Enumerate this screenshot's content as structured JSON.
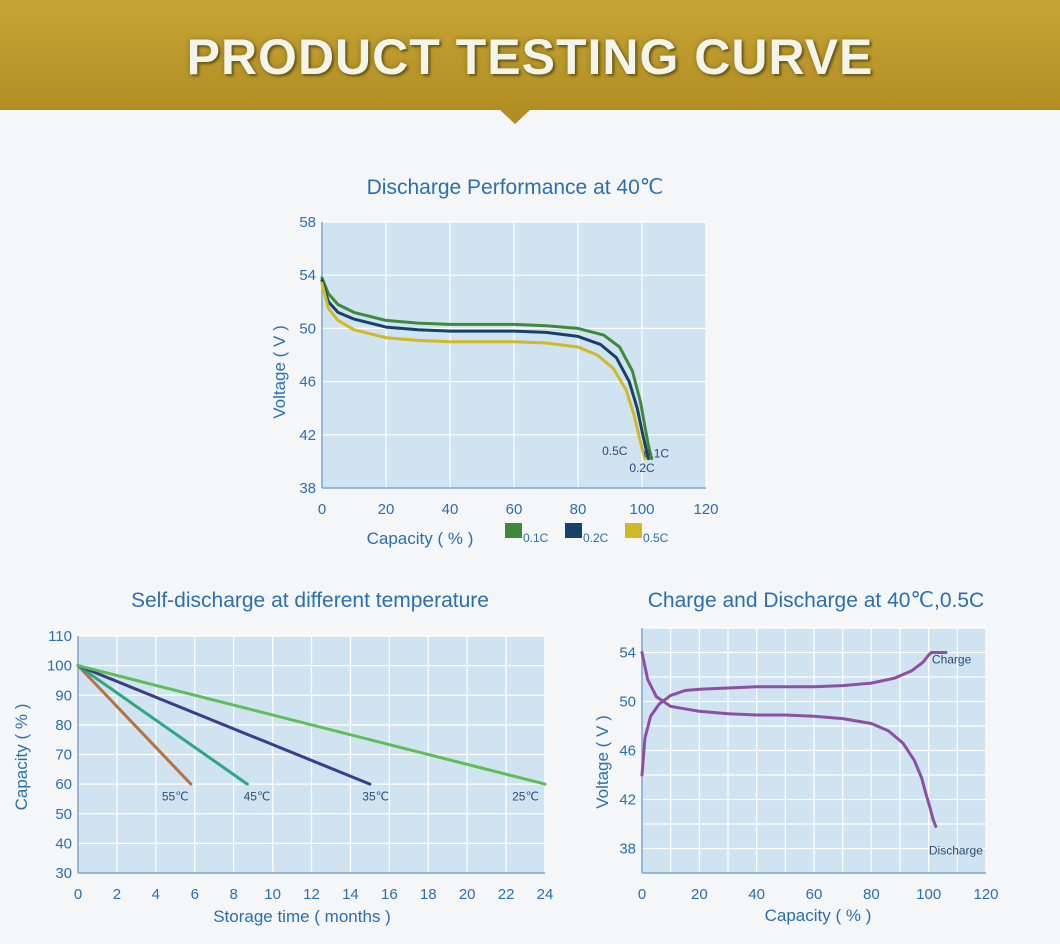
{
  "banner": {
    "title": "PRODUCT TESTING CURVE"
  },
  "colors": {
    "banner": "#b8952a",
    "plot_bg": "#cfe3f1",
    "grid": "#ffffff",
    "text": "#2a6fb0"
  },
  "chart_data": [
    {
      "id": "discharge",
      "type": "line",
      "title": "Discharge Performance at 40℃",
      "xlabel": "Capacity ( % )",
      "ylabel": "Voltage ( V )",
      "xlim": [
        0,
        120
      ],
      "ylim": [
        38,
        58
      ],
      "xticks": [
        0,
        20,
        40,
        60,
        80,
        100,
        120
      ],
      "yticks": [
        38,
        42,
        46,
        50,
        54,
        58
      ],
      "xgrid": [
        0,
        20,
        40,
        60,
        80,
        100,
        120
      ],
      "ygrid": [
        38,
        42,
        46,
        50,
        54,
        58
      ],
      "series": [
        {
          "name": "0.1C",
          "color": "#3e8a3a",
          "x": [
            0,
            2,
            5,
            10,
            20,
            30,
            40,
            50,
            60,
            70,
            80,
            88,
            93,
            97,
            99.5,
            101,
            102,
            103
          ],
          "y": [
            53.8,
            52.6,
            51.8,
            51.2,
            50.6,
            50.4,
            50.3,
            50.3,
            50.3,
            50.2,
            50.0,
            49.5,
            48.6,
            46.8,
            44.5,
            42.5,
            41.2,
            40.2
          ]
        },
        {
          "name": "0.2C",
          "color": "#17416b",
          "x": [
            0,
            2,
            5,
            10,
            20,
            30,
            40,
            50,
            60,
            70,
            80,
            87,
            92,
            96,
            98.5,
            100,
            101,
            102
          ],
          "y": [
            53.6,
            52.0,
            51.2,
            50.7,
            50.1,
            49.9,
            49.8,
            49.8,
            49.8,
            49.7,
            49.4,
            48.8,
            47.8,
            46.0,
            44.0,
            42.3,
            41.2,
            40.2
          ]
        },
        {
          "name": "0.5C",
          "color": "#d1b827",
          "x": [
            0,
            2,
            5,
            10,
            20,
            30,
            40,
            50,
            60,
            70,
            80,
            86,
            91,
            95,
            97.5,
            99,
            100,
            101
          ],
          "y": [
            53.4,
            51.5,
            50.6,
            49.9,
            49.3,
            49.1,
            49.0,
            49.0,
            49.0,
            48.9,
            48.6,
            48.0,
            47.0,
            45.4,
            43.5,
            42.0,
            41.0,
            40.2
          ]
        }
      ],
      "annotations": [
        {
          "text": "0.5C",
          "x": 91.5,
          "y": 40.5
        },
        {
          "text": "0.1C",
          "x": 104.5,
          "y": 40.3
        },
        {
          "text": "0.2C",
          "x": 100,
          "y": 39.2
        }
      ],
      "legend": [
        {
          "label": "0.1C",
          "color": "#3e8a3a"
        },
        {
          "label": "0.2C",
          "color": "#17416b"
        },
        {
          "label": "0.5C",
          "color": "#d1b827"
        }
      ]
    },
    {
      "id": "selfdischarge",
      "type": "line",
      "title": "Self-discharge at different temperature",
      "xlabel": "Storage time ( months )",
      "ylabel": "Capacity ( % )",
      "xlim": [
        0,
        24
      ],
      "ylim": [
        30,
        110
      ],
      "xticks": [
        0,
        2,
        4,
        6,
        8,
        10,
        12,
        14,
        16,
        18,
        20,
        22,
        24
      ],
      "yticks": [
        30,
        40,
        50,
        60,
        70,
        80,
        90,
        100,
        110
      ],
      "xgrid": [
        0,
        2,
        4,
        6,
        8,
        10,
        12,
        14,
        16,
        18,
        20,
        22,
        24
      ],
      "ygrid": [
        30,
        40,
        50,
        60,
        70,
        80,
        90,
        100,
        110
      ],
      "series": [
        {
          "name": "55℃",
          "color": "#b8723d",
          "x": [
            0,
            5.8
          ],
          "y": [
            100,
            60
          ]
        },
        {
          "name": "45℃",
          "color": "#2ea583",
          "x": [
            0,
            8.7
          ],
          "y": [
            100,
            60
          ]
        },
        {
          "name": "35℃",
          "color": "#3b3c8a",
          "x": [
            0,
            15
          ],
          "y": [
            100,
            60
          ]
        },
        {
          "name": "25℃",
          "color": "#5fbd55",
          "x": [
            0,
            24
          ],
          "y": [
            100,
            60
          ]
        }
      ],
      "annotations": [
        {
          "text": "55℃",
          "x": 5.0,
          "y": 54.5
        },
        {
          "text": "45℃",
          "x": 9.2,
          "y": 54.5
        },
        {
          "text": "35℃",
          "x": 15.3,
          "y": 54.5
        },
        {
          "text": "25℃",
          "x": 23.0,
          "y": 54.5
        }
      ]
    },
    {
      "id": "chargedischarge",
      "type": "line",
      "title": "Charge and Discharge at 40℃,0.5C",
      "xlabel": "Capacity ( % )",
      "ylabel": "Voltage ( V )",
      "xlim": [
        0,
        120
      ],
      "ylim": [
        36,
        56
      ],
      "xticks": [
        0,
        20,
        40,
        60,
        80,
        100,
        120
      ],
      "yticks": [
        38,
        42,
        46,
        50,
        54
      ],
      "xgrid": [
        0,
        10,
        20,
        30,
        40,
        50,
        60,
        70,
        80,
        90,
        100,
        110,
        120
      ],
      "ygrid": [
        36,
        38,
        40,
        42,
        44,
        46,
        48,
        50,
        52,
        54,
        56
      ],
      "series": [
        {
          "name": "Charge",
          "color": "#8e4fa2",
          "x": [
            0,
            1,
            3,
            6,
            10,
            15,
            20,
            30,
            40,
            50,
            60,
            70,
            80,
            88,
            94,
            98,
            100,
            101,
            104,
            106
          ],
          "y": [
            44.0,
            47.0,
            48.8,
            49.8,
            50.5,
            50.9,
            51.0,
            51.1,
            51.2,
            51.2,
            51.2,
            51.3,
            51.5,
            51.9,
            52.5,
            53.2,
            53.8,
            54.0,
            54.0,
            54.0
          ]
        },
        {
          "name": "Discharge",
          "color": "#8e4fa2",
          "x": [
            0,
            2,
            5,
            10,
            20,
            30,
            40,
            50,
            60,
            70,
            80,
            86,
            91,
            95,
            97.5,
            99,
            100.5,
            101.5,
            102.5
          ],
          "y": [
            54.0,
            51.8,
            50.4,
            49.6,
            49.2,
            49.0,
            48.9,
            48.9,
            48.8,
            48.6,
            48.2,
            47.6,
            46.6,
            45.2,
            43.8,
            42.5,
            41.3,
            40.4,
            39.8
          ]
        }
      ],
      "annotations": [
        {
          "text": "Charge",
          "x": 108,
          "y": 53.1
        },
        {
          "text": "Discharge",
          "x": 109.5,
          "y": 37.5
        }
      ]
    }
  ]
}
